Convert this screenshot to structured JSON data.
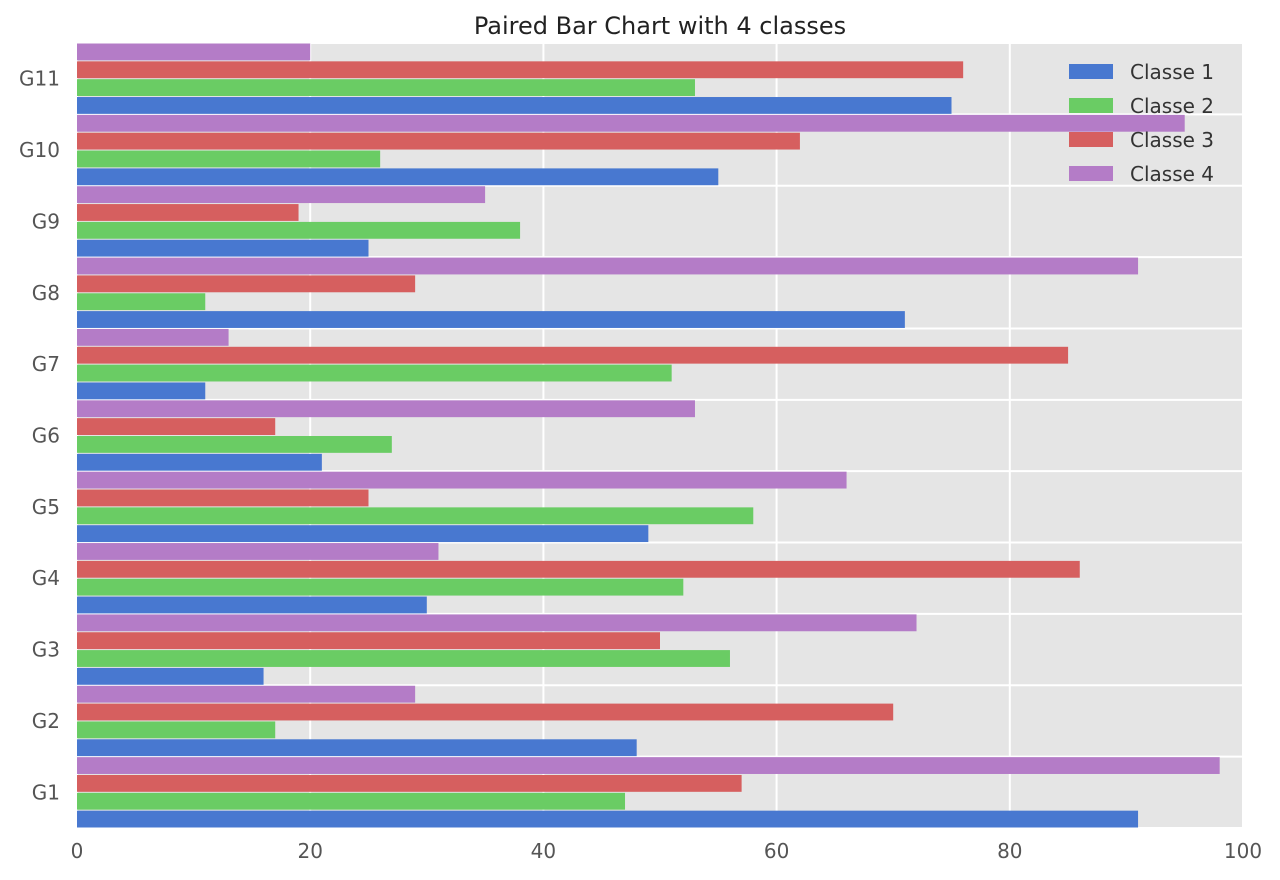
{
  "chart_data": {
    "type": "bar",
    "orientation": "horizontal",
    "title": "Paired Bar Chart with 4 classes",
    "xlabel": "",
    "ylabel": "",
    "categories": [
      "G1",
      "G2",
      "G3",
      "G4",
      "G5",
      "G6",
      "G7",
      "G8",
      "G9",
      "G10",
      "G11"
    ],
    "xlim": [
      0,
      100
    ],
    "x_ticks": [
      0,
      20,
      40,
      60,
      80,
      100
    ],
    "grid": true,
    "legend_position": "top-right",
    "series": [
      {
        "name": "Classe 1",
        "color": "#4878d0",
        "values": [
          91,
          48,
          16,
          30,
          49,
          21,
          11,
          71,
          25,
          55,
          75
        ]
      },
      {
        "name": "Classe 2",
        "color": "#6acc64",
        "values": [
          47,
          17,
          56,
          52,
          58,
          27,
          51,
          11,
          38,
          26,
          53
        ]
      },
      {
        "name": "Classe 3",
        "color": "#d65f5f",
        "values": [
          57,
          70,
          50,
          86,
          25,
          17,
          85,
          29,
          19,
          62,
          76
        ]
      },
      {
        "name": "Classe 4",
        "color": "#b47cc7",
        "values": [
          98,
          29,
          72,
          31,
          66,
          53,
          13,
          91,
          35,
          95,
          20
        ]
      }
    ]
  }
}
